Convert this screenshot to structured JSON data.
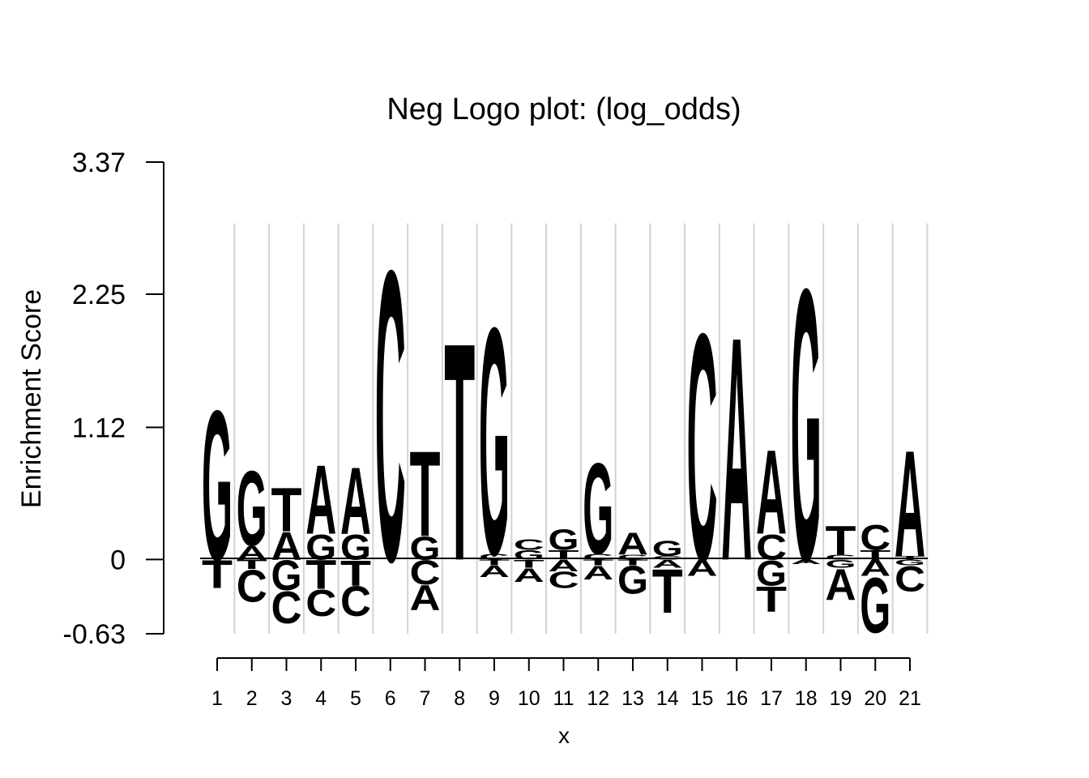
{
  "chart_data": {
    "type": "sequence-logo",
    "title": "Neg Logo plot: (log_odds)",
    "xlabel": "x",
    "ylabel": "Enrichment Score",
    "ylim": [
      -0.63,
      3.37
    ],
    "yticks": [
      3.37,
      2.25,
      1.12,
      0,
      -0.63
    ],
    "ytick_labels": [
      "3.37",
      "2.25",
      "1.12",
      "0",
      "-0.63"
    ],
    "categories": [
      "1",
      "2",
      "3",
      "4",
      "5",
      "6",
      "7",
      "8",
      "9",
      "10",
      "11",
      "12",
      "13",
      "14",
      "15",
      "16",
      "17",
      "18",
      "19",
      "20",
      "21"
    ],
    "grid": true,
    "colors": {
      "A": "#D7191C",
      "C": "#FDAE61",
      "G": "#ABDDA4",
      "T": "#2B83BA"
    },
    "positions": [
      {
        "pos": 1,
        "pos_stack": [
          [
            "G",
            1.3
          ]
        ],
        "neg_stack": [
          [
            "T",
            0.24
          ]
        ]
      },
      {
        "pos": 2,
        "pos_stack": [
          [
            "A",
            0.12
          ],
          [
            "G",
            0.65
          ]
        ],
        "neg_stack": [
          [
            "T",
            0.08
          ],
          [
            "C",
            0.28
          ]
        ]
      },
      {
        "pos": 3,
        "pos_stack": [
          [
            "A",
            0.24
          ],
          [
            "T",
            0.38
          ]
        ],
        "neg_stack": [
          [
            "G",
            0.26
          ],
          [
            "C",
            0.28
          ]
        ]
      },
      {
        "pos": 4,
        "pos_stack": [
          [
            "G",
            0.22
          ],
          [
            "A",
            0.6
          ]
        ],
        "neg_stack": [
          [
            "T",
            0.25
          ],
          [
            "C",
            0.23
          ]
        ]
      },
      {
        "pos": 5,
        "pos_stack": [
          [
            "G",
            0.22
          ],
          [
            "A",
            0.58
          ]
        ],
        "neg_stack": [
          [
            "T",
            0.22
          ],
          [
            "C",
            0.26
          ]
        ]
      },
      {
        "pos": 6,
        "pos_stack": [
          [
            "C",
            2.52
          ]
        ],
        "neg_stack": []
      },
      {
        "pos": 7,
        "pos_stack": [
          [
            "G",
            0.2
          ],
          [
            "T",
            0.74
          ]
        ],
        "neg_stack": [
          [
            "C",
            0.21
          ],
          [
            "A",
            0.22
          ]
        ]
      },
      {
        "pos": 8,
        "pos_stack": [
          [
            "T",
            1.89
          ]
        ],
        "neg_stack": []
      },
      {
        "pos": 9,
        "pos_stack": [
          [
            "C",
            0.05
          ],
          [
            "G",
            1.97
          ]
        ],
        "neg_stack": [
          [
            "T",
            0.05
          ],
          [
            "A",
            0.1
          ]
        ]
      },
      {
        "pos": 10,
        "pos_stack": [
          [
            "G",
            0.08
          ],
          [
            "C",
            0.09
          ]
        ],
        "neg_stack": [
          [
            "T",
            0.07
          ],
          [
            "A",
            0.12
          ]
        ]
      },
      {
        "pos": 11,
        "pos_stack": [
          [
            "T",
            0.08
          ],
          [
            "G",
            0.18
          ]
        ],
        "neg_stack": [
          [
            "A",
            0.1
          ],
          [
            "C",
            0.14
          ]
        ]
      },
      {
        "pos": 12,
        "pos_stack": [
          [
            "C",
            0.05
          ],
          [
            "G",
            0.79
          ]
        ],
        "neg_stack": [
          [
            "T",
            0.05
          ],
          [
            "A",
            0.12
          ]
        ]
      },
      {
        "pos": 13,
        "pos_stack": [
          [
            "C",
            0.04
          ],
          [
            "A",
            0.19
          ]
        ],
        "neg_stack": [
          [
            "T",
            0.05
          ],
          [
            "G",
            0.24
          ]
        ]
      },
      {
        "pos": 14,
        "pos_stack": [
          [
            "C",
            0.03
          ],
          [
            "G",
            0.13
          ]
        ],
        "neg_stack": [
          [
            "A",
            0.07
          ],
          [
            "T",
            0.38
          ]
        ]
      },
      {
        "pos": 15,
        "pos_stack": [
          [
            "C",
            1.97
          ]
        ],
        "neg_stack": [
          [
            "A",
            0.14
          ]
        ]
      },
      {
        "pos": 16,
        "pos_stack": [
          [
            "A",
            1.94
          ]
        ],
        "neg_stack": []
      },
      {
        "pos": 17,
        "pos_stack": [
          [
            "C",
            0.22
          ],
          [
            "A",
            0.73
          ]
        ],
        "neg_stack": [
          [
            "G",
            0.22
          ],
          [
            "T",
            0.22
          ]
        ]
      },
      {
        "pos": 18,
        "pos_stack": [
          [
            "G",
            2.36
          ]
        ],
        "neg_stack": [
          [
            "A",
            0.04
          ]
        ]
      },
      {
        "pos": 19,
        "pos_stack": [
          [
            "C",
            0.04
          ],
          [
            "T",
            0.25
          ]
        ],
        "neg_stack": [
          [
            "G",
            0.07
          ],
          [
            "A",
            0.27
          ]
        ]
      },
      {
        "pos": 20,
        "pos_stack": [
          [
            "T",
            0.08
          ],
          [
            "C",
            0.22
          ]
        ],
        "neg_stack": [
          [
            "A",
            0.14
          ],
          [
            "G",
            0.48
          ]
        ]
      },
      {
        "pos": 21,
        "pos_stack": [
          [
            "T",
            0.03
          ],
          [
            "A",
            0.92
          ]
        ],
        "neg_stack": [
          [
            "G",
            0.05
          ],
          [
            "C",
            0.22
          ]
        ]
      }
    ]
  }
}
